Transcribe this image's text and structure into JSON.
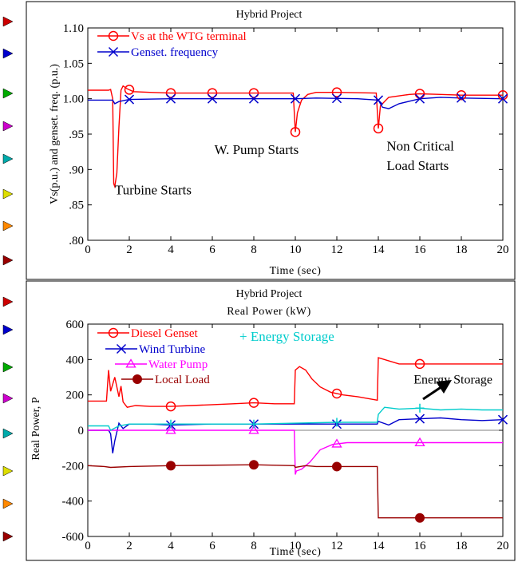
{
  "chart_data": [
    {
      "type": "line",
      "title": "Hybrid Project",
      "subtitle": "",
      "xlabel": "Time (sec)",
      "ylabel": "Vs(p.u.) and genset. freq. (p.u.)",
      "xlim": [
        0,
        20
      ],
      "ylim": [
        0.8,
        1.1
      ],
      "xticks": [
        "0",
        "2",
        "4",
        "6",
        "8",
        "10",
        "12",
        "14",
        "16",
        "18",
        "20"
      ],
      "yticks": [
        ".80",
        ".85",
        ".90",
        ".95",
        "1.00",
        "1.05",
        "1.10"
      ],
      "grid": false,
      "legend_position": "top-left",
      "series": [
        {
          "name": "Vs at the WTG terminal",
          "color": "#ff0000",
          "marker": "circle",
          "marker_x": [
            2,
            4,
            6,
            8,
            10,
            12,
            14,
            16,
            18,
            20
          ],
          "x": [
            0,
            1,
            1.1,
            1.2,
            1.25,
            1.3,
            1.4,
            1.5,
            1.6,
            1.7,
            1.9,
            2.2,
            3,
            4,
            6,
            8,
            9.9,
            10,
            10.1,
            10.3,
            10.6,
            11,
            12,
            13.9,
            14,
            14.1,
            14.5,
            15.5,
            16,
            17,
            18,
            20
          ],
          "y": [
            1.012,
            1.012,
            1.013,
            1.0,
            0.88,
            0.876,
            0.895,
            0.96,
            1.012,
            1.018,
            1.014,
            1.01,
            1.009,
            1.008,
            1.008,
            1.008,
            1.008,
            0.953,
            0.98,
            0.998,
            1.006,
            1.009,
            1.009,
            1.008,
            0.958,
            0.99,
            1.002,
            1.006,
            1.007,
            1.006,
            1.005,
            1.005
          ]
        },
        {
          "name": "Genset. frequency",
          "color": "#0000cc",
          "marker": "x",
          "marker_x": [
            2,
            4,
            6,
            8,
            10,
            12,
            14,
            16,
            18,
            20
          ],
          "x": [
            0,
            1.2,
            1.3,
            1.5,
            2,
            4,
            8,
            10,
            11,
            13,
            14,
            14.2,
            14.5,
            15,
            16,
            17,
            18,
            20
          ],
          "y": [
            0.998,
            0.998,
            0.993,
            0.996,
            0.999,
            1.0,
            1.0,
            1.0,
            1.001,
            1.0,
            0.998,
            0.988,
            0.986,
            0.993,
            1.0,
            1.002,
            1.001,
            1.0
          ]
        }
      ],
      "annotations": [
        {
          "text": "Turbine Starts",
          "x": 1.3,
          "y": 0.865
        },
        {
          "text": "W. Pump Starts",
          "x": 6.1,
          "y": 0.922
        },
        {
          "text": "Non Critical",
          "x": 14.4,
          "y": 0.927
        },
        {
          "text": "Load Starts",
          "x": 14.4,
          "y": 0.899
        }
      ]
    },
    {
      "type": "line",
      "title": "Hybrid Project",
      "subtitle": "Real Power (kW)",
      "xlabel": "Time (sec)",
      "ylabel": "Real Power, P",
      "xlim": [
        0,
        20
      ],
      "ylim": [
        -600,
        600
      ],
      "xticks": [
        "0",
        "2",
        "4",
        "6",
        "8",
        "10",
        "12",
        "14",
        "16",
        "18",
        "20"
      ],
      "yticks": [
        "-600",
        "-400",
        "-200",
        "0",
        "200",
        "400",
        "600"
      ],
      "grid": false,
      "legend_position": "top-left",
      "series": [
        {
          "name": "Diesel Genset",
          "color": "#ff0000",
          "marker": "circle",
          "marker_x": [
            4,
            8,
            12,
            16
          ],
          "x": [
            0,
            0.9,
            1.0,
            1.1,
            1.3,
            1.5,
            1.6,
            1.7,
            1.9,
            2.3,
            3,
            4,
            5,
            6,
            7,
            8,
            9,
            9.95,
            10,
            10.2,
            10.5,
            10.8,
            11.2,
            11.7,
            12.3,
            13,
            13.95,
            14,
            15,
            16,
            18,
            20
          ],
          "y": [
            165,
            165,
            340,
            220,
            300,
            190,
            250,
            160,
            130,
            140,
            135,
            135,
            140,
            145,
            150,
            155,
            150,
            150,
            340,
            360,
            340,
            290,
            245,
            215,
            200,
            190,
            170,
            410,
            375,
            375,
            375,
            375
          ]
        },
        {
          "name": "Wind Turbine",
          "color": "#0000cc",
          "marker": "x",
          "marker_x": [
            4,
            8,
            12,
            16,
            20
          ],
          "x": [
            0,
            1.0,
            1.1,
            1.2,
            1.3,
            1.5,
            1.7,
            2,
            3,
            4,
            6,
            8,
            10,
            12,
            13.95,
            14,
            14.5,
            15,
            16,
            17,
            18,
            19,
            20
          ],
          "y": [
            0,
            0,
            -20,
            -130,
            -60,
            40,
            10,
            35,
            35,
            30,
            35,
            35,
            35,
            35,
            35,
            50,
            30,
            60,
            65,
            70,
            60,
            55,
            60
          ]
        },
        {
          "name": "Water Pump",
          "color": "#ff00ff",
          "marker": "triangle",
          "marker_x": [
            4,
            8,
            12,
            16
          ],
          "x": [
            0,
            9.95,
            10,
            10.05,
            10.3,
            10.7,
            11.2,
            11.8,
            12.5,
            14,
            16,
            18,
            20
          ],
          "y": [
            0,
            0,
            -250,
            -230,
            -220,
            -180,
            -110,
            -80,
            -70,
            -70,
            -70,
            -70,
            -70
          ]
        },
        {
          "name": "Local Load",
          "color": "#990000",
          "marker": "filled-circle",
          "marker_x": [
            4,
            8,
            12,
            16
          ],
          "x": [
            0,
            0.8,
            1.1,
            2,
            4,
            8,
            9.95,
            10,
            10.5,
            11,
            12,
            13.95,
            14,
            14.5,
            16,
            20
          ],
          "y": [
            -200,
            -205,
            -210,
            -205,
            -200,
            -195,
            -200,
            -210,
            -200,
            -205,
            -205,
            -205,
            -495,
            -495,
            -495,
            -495
          ]
        },
        {
          "name": "+ Energy Storage",
          "color": "#00cccc",
          "marker": "plus",
          "marker_x": [
            4,
            8,
            12,
            16
          ],
          "x": [
            0,
            1,
            1.1,
            1.5,
            2,
            4,
            6,
            8,
            10,
            12,
            13.95,
            14,
            14.3,
            15,
            16,
            17,
            18,
            19,
            20
          ],
          "y": [
            25,
            25,
            0,
            25,
            35,
            35,
            35,
            35,
            40,
            45,
            45,
            90,
            130,
            120,
            125,
            115,
            120,
            115,
            115
          ]
        }
      ],
      "annotations": [
        {
          "text": "Energy Storage",
          "x": 15.7,
          "y": 265
        }
      ]
    }
  ],
  "side_arrows": [
    "#cc0000",
    "#0000cc",
    "#00aa00",
    "#cc00cc",
    "#00aaaa",
    "#dddd00",
    "#ff8800",
    "#990000",
    "#cc0000",
    "#0000cc",
    "#00aa00",
    "#cc00cc",
    "#00aaaa",
    "#dddd00",
    "#ff8800",
    "#990000"
  ]
}
